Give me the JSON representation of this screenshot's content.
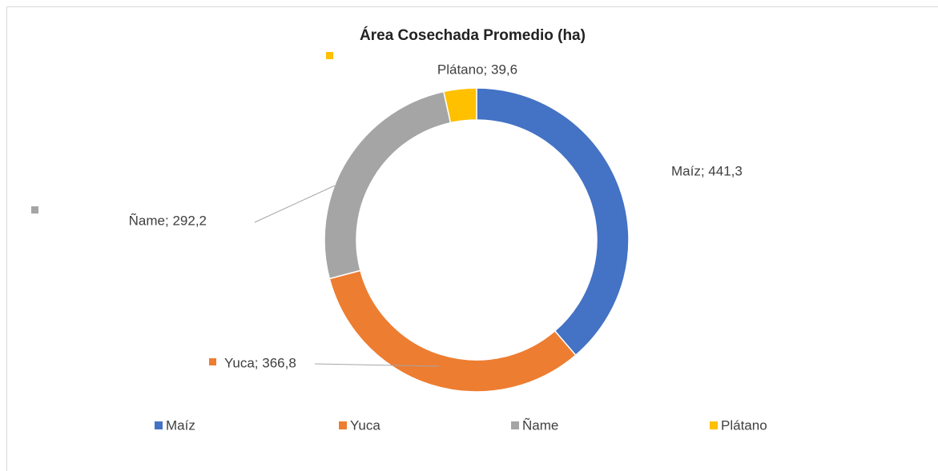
{
  "chart_data": {
    "type": "donut",
    "title": "Área Cosechada Promedio (ha)",
    "categories": [
      "Maíz",
      "Yuca",
      "Ñame",
      "Plátano"
    ],
    "values": [
      441.3,
      366.8,
      292.2,
      39.6
    ],
    "value_labels": [
      "Maíz; 441,3",
      "Yuca; 366,8",
      "Ñame; 292,2",
      "Plátano; 39,6"
    ],
    "colors": [
      "#4472c4",
      "#ed7d31",
      "#a5a5a5",
      "#ffc000"
    ],
    "legend": "bottom"
  }
}
